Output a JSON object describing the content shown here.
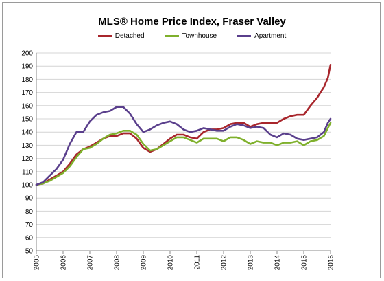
{
  "colors": {
    "detached": "#a8262c",
    "townhouse": "#7fb02c",
    "apartment": "#5a3f8c",
    "grid": "#d4d4d4",
    "axis": "#888888"
  },
  "chart_data": {
    "type": "line",
    "title": "MLS® Home Price Index, Fraser Valley",
    "xlabel": "",
    "ylabel": "",
    "ylim": [
      50,
      200
    ],
    "yticks": [
      50,
      60,
      70,
      80,
      90,
      100,
      110,
      120,
      130,
      140,
      150,
      160,
      170,
      180,
      190,
      200
    ],
    "xlim": [
      2005,
      2016
    ],
    "xticks": [
      "2005",
      "2006",
      "2007",
      "2008",
      "2009",
      "2010",
      "2011",
      "2012",
      "2013",
      "2014",
      "2015",
      "2016"
    ],
    "grid": true,
    "legend": "top-center",
    "series": [
      {
        "name": "Detached",
        "color_key": "detached",
        "x": [
          2005.0,
          2005.25,
          2005.5,
          2005.75,
          2006.0,
          2006.25,
          2006.5,
          2006.75,
          2007.0,
          2007.25,
          2007.5,
          2007.75,
          2008.0,
          2008.25,
          2008.5,
          2008.75,
          2009.0,
          2009.25,
          2009.5,
          2009.75,
          2010.0,
          2010.25,
          2010.5,
          2010.75,
          2011.0,
          2011.25,
          2011.5,
          2011.75,
          2012.0,
          2012.25,
          2012.5,
          2012.75,
          2013.0,
          2013.25,
          2013.5,
          2013.75,
          2014.0,
          2014.25,
          2014.5,
          2014.75,
          2015.0,
          2015.25,
          2015.5,
          2015.75,
          2015.9,
          2016.0
        ],
        "y": [
          100,
          101,
          104,
          107,
          110,
          116,
          123,
          127,
          129,
          132,
          135,
          137,
          137,
          139,
          139,
          135,
          128,
          125,
          127,
          131,
          135,
          138,
          138,
          136,
          135,
          140,
          142,
          142,
          143,
          146,
          147,
          147,
          144,
          146,
          147,
          147,
          147,
          150,
          152,
          153,
          153,
          160,
          166,
          174,
          181,
          191
        ]
      },
      {
        "name": "Townhouse",
        "color_key": "townhouse",
        "x": [
          2005.0,
          2005.25,
          2005.5,
          2005.75,
          2006.0,
          2006.25,
          2006.5,
          2006.75,
          2007.0,
          2007.25,
          2007.5,
          2007.75,
          2008.0,
          2008.25,
          2008.5,
          2008.75,
          2009.0,
          2009.25,
          2009.5,
          2009.75,
          2010.0,
          2010.25,
          2010.5,
          2010.75,
          2011.0,
          2011.25,
          2011.5,
          2011.75,
          2012.0,
          2012.25,
          2012.5,
          2012.75,
          2013.0,
          2013.25,
          2013.5,
          2013.75,
          2014.0,
          2014.25,
          2014.5,
          2014.75,
          2015.0,
          2015.25,
          2015.5,
          2015.75,
          2015.9,
          2016.0
        ],
        "y": [
          100,
          101,
          103,
          106,
          109,
          114,
          121,
          127,
          128,
          131,
          135,
          138,
          139,
          141,
          141,
          138,
          131,
          126,
          127,
          130,
          133,
          136,
          136,
          134,
          132,
          135,
          135,
          135,
          133,
          136,
          136,
          134,
          131,
          133,
          132,
          132,
          130,
          132,
          132,
          133,
          130,
          133,
          134,
          137,
          143,
          147
        ]
      },
      {
        "name": "Apartment",
        "color_key": "apartment",
        "x": [
          2005.0,
          2005.25,
          2005.5,
          2005.75,
          2006.0,
          2006.25,
          2006.5,
          2006.75,
          2007.0,
          2007.25,
          2007.5,
          2007.75,
          2008.0,
          2008.25,
          2008.5,
          2008.75,
          2009.0,
          2009.25,
          2009.5,
          2009.75,
          2010.0,
          2010.25,
          2010.5,
          2010.75,
          2011.0,
          2011.25,
          2011.5,
          2011.75,
          2012.0,
          2012.25,
          2012.5,
          2012.75,
          2013.0,
          2013.25,
          2013.5,
          2013.75,
          2014.0,
          2014.25,
          2014.5,
          2014.75,
          2015.0,
          2015.25,
          2015.5,
          2015.75,
          2015.9,
          2016.0
        ],
        "y": [
          100,
          102,
          107,
          112,
          119,
          131,
          140,
          140,
          148,
          153,
          155,
          156,
          159,
          159,
          154,
          146,
          140,
          142,
          145,
          147,
          148,
          146,
          142,
          140,
          141,
          143,
          142,
          141,
          141,
          144,
          146,
          145,
          143,
          144,
          143,
          138,
          136,
          139,
          138,
          135,
          134,
          135,
          136,
          140,
          147,
          150
        ]
      }
    ]
  }
}
